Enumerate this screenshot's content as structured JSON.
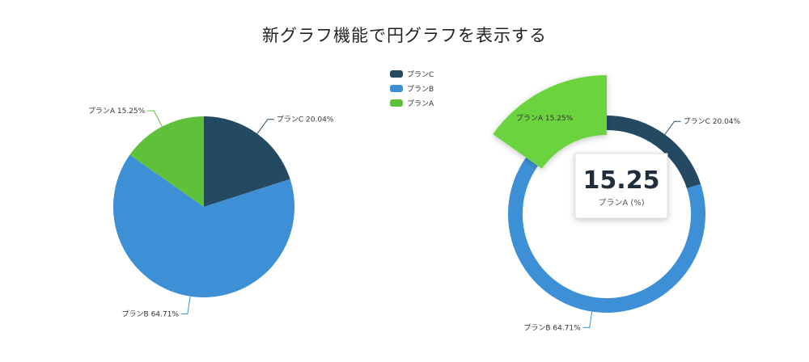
{
  "page": {
    "title": "新グラフ機能で円グラフを表示する"
  },
  "chart_data": [
    {
      "type": "pie",
      "categories": [
        "プランC",
        "プランB",
        "プランA"
      ],
      "values": [
        20.04,
        64.71,
        15.25
      ],
      "unit": "%",
      "colors": [
        "#244a62",
        "#3d8fd6",
        "#5fc13a"
      ],
      "legend": {
        "placement": "top-center",
        "entries": [
          "プランC",
          "プランB",
          "プランA"
        ]
      },
      "slice_labels": [
        "プランC 20.04%",
        "プランB 64.71%",
        "プランA 15.25%"
      ]
    },
    {
      "type": "pie",
      "variant": "donut",
      "categories": [
        "プランC",
        "プランB",
        "プランA"
      ],
      "values": [
        20.04,
        64.71,
        15.25
      ],
      "unit": "%",
      "colors": [
        "#244a62",
        "#3d8fd6",
        "#6bd33e"
      ],
      "highlighted": "プランA",
      "slice_labels": [
        "プランC 20.04%",
        "プランB 64.71%",
        "プランA 15.25%"
      ],
      "tooltip": {
        "value": "15.25",
        "caption": "プランA (%)"
      }
    }
  ]
}
